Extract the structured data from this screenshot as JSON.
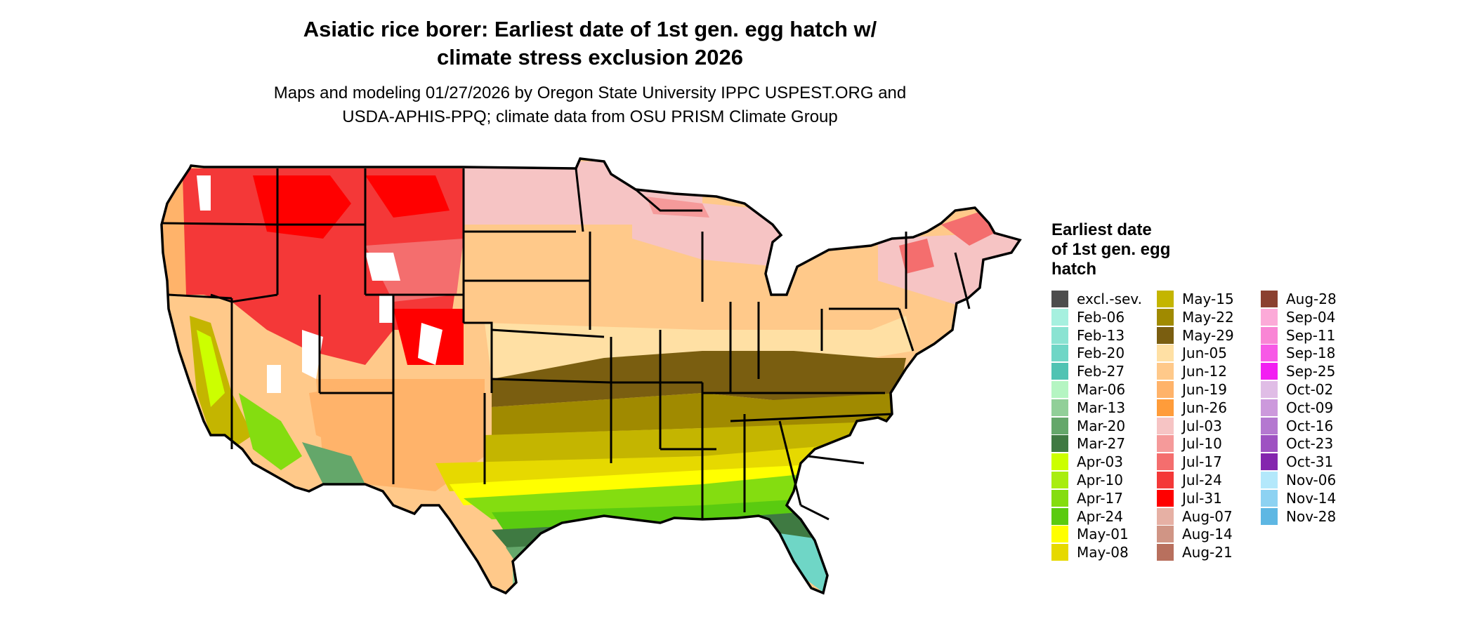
{
  "header": {
    "title_line1": "Asiatic rice borer: Earliest date of 1st gen. egg hatch w/",
    "title_line2": "climate stress exclusion 2026",
    "subtitle_line1": "Maps and modeling 01/27/2026 by Oregon State University IPPC USPEST.ORG and",
    "subtitle_line2": "USDA-APHIS-PPQ; climate data from OSU PRISM Climate Group"
  },
  "legend": {
    "title_line1": "Earliest date",
    "title_line2": "of 1st gen. egg",
    "title_line3": "hatch",
    "items": [
      {
        "label": "excl.-sev.",
        "color": "#4d4d4d"
      },
      {
        "label": "Feb-06",
        "color": "#a6f0df"
      },
      {
        "label": "Feb-13",
        "color": "#8ae3d2"
      },
      {
        "label": "Feb-20",
        "color": "#6fd6c6"
      },
      {
        "label": "Feb-27",
        "color": "#50c3b3"
      },
      {
        "label": "Mar-06",
        "color": "#b5f5c2"
      },
      {
        "label": "Mar-13",
        "color": "#91cf98"
      },
      {
        "label": "Mar-20",
        "color": "#64a76a"
      },
      {
        "label": "Mar-27",
        "color": "#3f7a42"
      },
      {
        "label": "Apr-03",
        "color": "#ccff00"
      },
      {
        "label": "Apr-10",
        "color": "#a8ed0f"
      },
      {
        "label": "Apr-17",
        "color": "#84dd10"
      },
      {
        "label": "Apr-24",
        "color": "#5acb10"
      },
      {
        "label": "May-01",
        "color": "#ffff00"
      },
      {
        "label": "May-08",
        "color": "#e6d900"
      },
      {
        "label": "May-15",
        "color": "#c4b500"
      },
      {
        "label": "May-22",
        "color": "#a08a00"
      },
      {
        "label": "May-29",
        "color": "#7a5e10"
      },
      {
        "label": "Jun-05",
        "color": "#ffe0a4"
      },
      {
        "label": "Jun-12",
        "color": "#ffc98a"
      },
      {
        "label": "Jun-19",
        "color": "#ffb36a"
      },
      {
        "label": "Jun-26",
        "color": "#ff9c3a"
      },
      {
        "label": "Jul-03",
        "color": "#f6c4c4"
      },
      {
        "label": "Jul-10",
        "color": "#f59a9a"
      },
      {
        "label": "Jul-17",
        "color": "#f46e6e"
      },
      {
        "label": "Jul-24",
        "color": "#f43838"
      },
      {
        "label": "Jul-31",
        "color": "#ff0000"
      },
      {
        "label": "Aug-07",
        "color": "#e6b0a4"
      },
      {
        "label": "Aug-14",
        "color": "#d09585"
      },
      {
        "label": "Aug-21",
        "color": "#b8705e"
      },
      {
        "label": "Aug-28",
        "color": "#8b4030"
      },
      {
        "label": "Sep-04",
        "color": "#fcaad8"
      },
      {
        "label": "Sep-11",
        "color": "#f985d5"
      },
      {
        "label": "Sep-18",
        "color": "#f759e6"
      },
      {
        "label": "Sep-25",
        "color": "#f21ef2"
      },
      {
        "label": "Oct-02",
        "color": "#e0bde6"
      },
      {
        "label": "Oct-09",
        "color": "#cc99dc"
      },
      {
        "label": "Oct-16",
        "color": "#b478d0"
      },
      {
        "label": "Oct-23",
        "color": "#9e52c2"
      },
      {
        "label": "Oct-31",
        "color": "#8426ae"
      },
      {
        "label": "Nov-06",
        "color": "#b3e8fb"
      },
      {
        "label": "Nov-14",
        "color": "#8dd2f2"
      },
      {
        "label": "Nov-28",
        "color": "#5eb7e3"
      }
    ]
  },
  "map_colors": {
    "outline": "#000000",
    "mountain_red": "#f43838",
    "high_red": "#ff0000",
    "pink": "#f6c4c4",
    "orange_light": "#ffc98a",
    "orange": "#ff9c3a",
    "tan": "#ffe0a4",
    "brown": "#7a5e10",
    "olive": "#a08a00",
    "gold": "#c4b500",
    "yellow": "#ffff00",
    "yellow_dark": "#e6d900",
    "green": "#84dd10",
    "green_bright": "#5acb10",
    "dark_green": "#3f7a42",
    "mid_green": "#64a76a",
    "light_green": "#91cf98",
    "teal": "#6fd6c6",
    "teal_light": "#8ae3d2",
    "excluded": "#ffffff"
  }
}
